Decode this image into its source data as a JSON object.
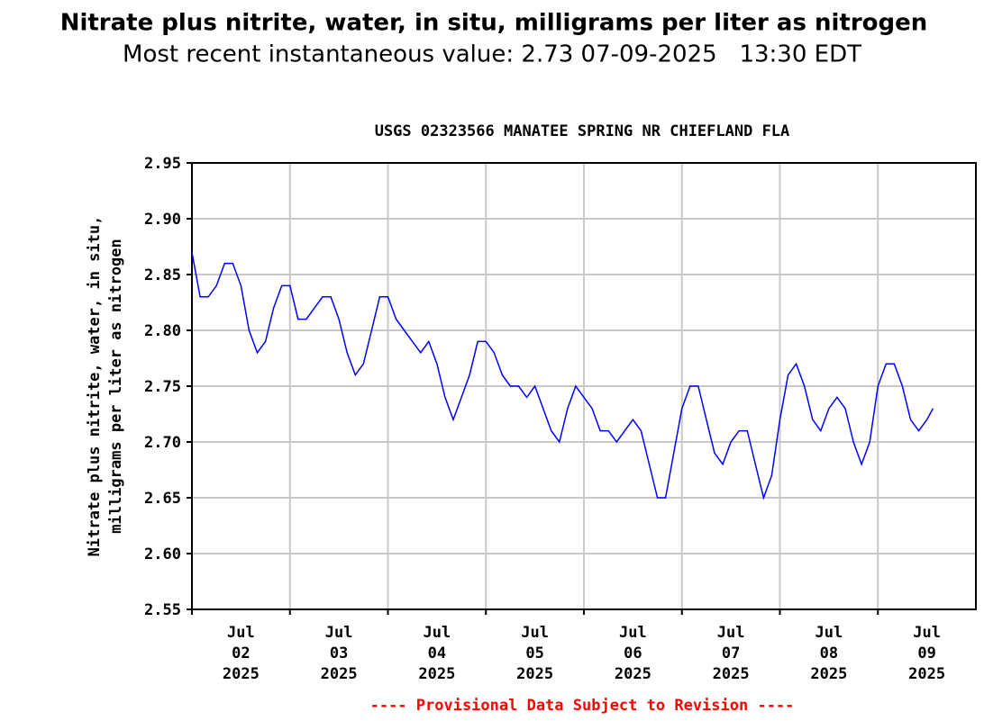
{
  "header": {
    "title": "Nitrate plus nitrite, water, in situ, milligrams per liter as nitrogen",
    "subtitle": "Most recent instantaneous value: 2.73 07-09-2025   13:30 EDT"
  },
  "chart_data": {
    "type": "line",
    "title": "USGS 02323566 MANATEE SPRING NR CHIEFLAND FLA",
    "y_label": [
      "Nitrate plus nitrite, water, in situ,",
      "milligrams per liter as nitrogen"
    ],
    "color": "#0000ff",
    "grid": true,
    "xlim": [
      "2025-07-02 00:00",
      "2025-07-10 00:00"
    ],
    "xticks": [
      {
        "value": "2025-07-02 00:00",
        "label": "Jul 02 2025"
      },
      {
        "value": "2025-07-03 00:00",
        "label": "Jul 03 2025"
      },
      {
        "value": "2025-07-04 00:00",
        "label": "Jul 04 2025"
      },
      {
        "value": "2025-07-05 00:00",
        "label": "Jul 05 2025"
      },
      {
        "value": "2025-07-06 00:00",
        "label": "Jul 06 2025"
      },
      {
        "value": "2025-07-07 00:00",
        "label": "Jul 07 2025"
      },
      {
        "value": "2025-07-08 00:00",
        "label": "Jul 08 2025"
      },
      {
        "value": "2025-07-09 00:00",
        "label": "Jul 09 2025"
      }
    ],
    "ylim": [
      2.55,
      2.95
    ],
    "yticks": [
      2.55,
      {
        "value": 2.6,
        "label": "2.60"
      },
      2.65,
      {
        "value": 2.7,
        "label": "2.70"
      },
      2.75,
      {
        "value": 2.8,
        "label": "2.80"
      },
      2.85,
      {
        "value": 2.9,
        "label": "2.90"
      },
      2.95
    ],
    "x": [
      "2025-07-02 00:00",
      "2025-07-02 02:00",
      "2025-07-02 04:00",
      "2025-07-02 06:00",
      "2025-07-02 08:00",
      "2025-07-02 10:00",
      "2025-07-02 12:00",
      "2025-07-02 14:00",
      "2025-07-02 16:00",
      "2025-07-02 18:00",
      "2025-07-02 20:00",
      "2025-07-02 22:00",
      "2025-07-03 00:00",
      "2025-07-03 02:00",
      "2025-07-03 04:00",
      "2025-07-03 06:00",
      "2025-07-03 08:00",
      "2025-07-03 10:00",
      "2025-07-03 12:00",
      "2025-07-03 14:00",
      "2025-07-03 16:00",
      "2025-07-03 18:00",
      "2025-07-03 20:00",
      "2025-07-03 22:00",
      "2025-07-04 00:00",
      "2025-07-04 02:00",
      "2025-07-04 04:00",
      "2025-07-04 06:00",
      "2025-07-04 08:00",
      "2025-07-04 10:00",
      "2025-07-04 12:00",
      "2025-07-04 14:00",
      "2025-07-04 16:00",
      "2025-07-04 18:00",
      "2025-07-04 20:00",
      "2025-07-04 22:00",
      "2025-07-05 00:00",
      "2025-07-05 02:00",
      "2025-07-05 04:00",
      "2025-07-05 06:00",
      "2025-07-05 08:00",
      "2025-07-05 10:00",
      "2025-07-05 12:00",
      "2025-07-05 14:00",
      "2025-07-05 16:00",
      "2025-07-05 18:00",
      "2025-07-05 20:00",
      "2025-07-05 22:00",
      "2025-07-06 00:00",
      "2025-07-06 02:00",
      "2025-07-06 04:00",
      "2025-07-06 06:00",
      "2025-07-06 08:00",
      "2025-07-06 10:00",
      "2025-07-06 12:00",
      "2025-07-06 14:00",
      "2025-07-06 16:00",
      "2025-07-06 18:00",
      "2025-07-06 20:00",
      "2025-07-06 22:00",
      "2025-07-07 00:00",
      "2025-07-07 02:00",
      "2025-07-07 04:00",
      "2025-07-07 06:00",
      "2025-07-07 08:00",
      "2025-07-07 10:00",
      "2025-07-07 12:00",
      "2025-07-07 14:00",
      "2025-07-07 16:00",
      "2025-07-07 18:00",
      "2025-07-07 20:00",
      "2025-07-07 22:00",
      "2025-07-08 00:00",
      "2025-07-08 02:00",
      "2025-07-08 04:00",
      "2025-07-08 06:00",
      "2025-07-08 08:00",
      "2025-07-08 10:00",
      "2025-07-08 12:00",
      "2025-07-08 14:00",
      "2025-07-08 16:00",
      "2025-07-08 18:00",
      "2025-07-08 20:00",
      "2025-07-08 22:00",
      "2025-07-09 00:00",
      "2025-07-09 02:00",
      "2025-07-09 04:00",
      "2025-07-09 06:00",
      "2025-07-09 08:00",
      "2025-07-09 10:00",
      "2025-07-09 12:00",
      "2025-07-09 13:30"
    ],
    "values": [
      2.87,
      2.83,
      2.83,
      2.84,
      2.86,
      2.86,
      2.84,
      2.8,
      2.78,
      2.79,
      2.82,
      2.84,
      2.84,
      2.81,
      2.81,
      2.82,
      2.83,
      2.83,
      2.81,
      2.78,
      2.76,
      2.77,
      2.8,
      2.83,
      2.83,
      2.81,
      2.8,
      2.79,
      2.78,
      2.79,
      2.77,
      2.74,
      2.72,
      2.74,
      2.76,
      2.79,
      2.79,
      2.78,
      2.76,
      2.75,
      2.75,
      2.74,
      2.75,
      2.73,
      2.71,
      2.7,
      2.73,
      2.75,
      2.74,
      2.73,
      2.71,
      2.71,
      2.7,
      2.71,
      2.72,
      2.71,
      2.68,
      2.65,
      2.65,
      2.69,
      2.73,
      2.75,
      2.75,
      2.72,
      2.69,
      2.68,
      2.7,
      2.71,
      2.71,
      2.68,
      2.65,
      2.67,
      2.72,
      2.76,
      2.77,
      2.75,
      2.72,
      2.71,
      2.73,
      2.74,
      2.73,
      2.7,
      2.68,
      2.7,
      2.75,
      2.77,
      2.77,
      2.75,
      2.72,
      2.71,
      2.72,
      2.73
    ]
  },
  "footer": "---- Provisional Data Subject to Revision ----"
}
